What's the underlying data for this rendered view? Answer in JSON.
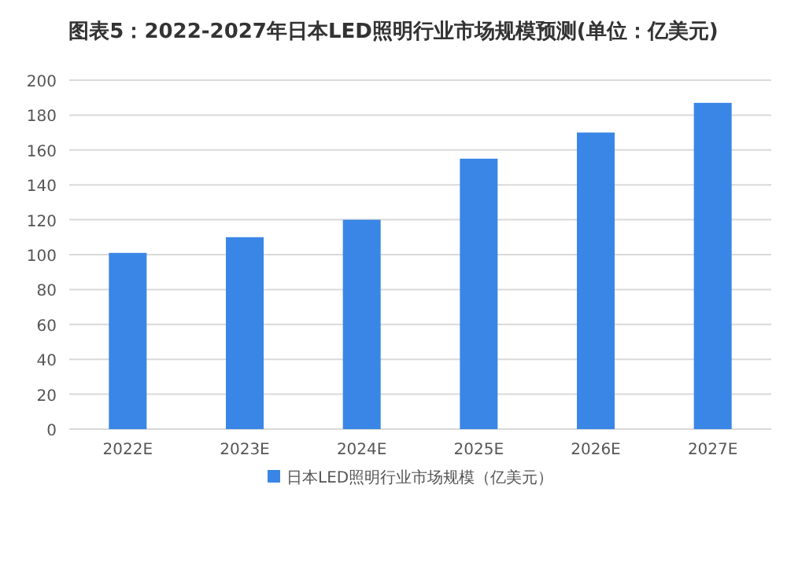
{
  "chart_data": {
    "type": "bar",
    "title": "图表5：2022-2027年日本LED照明行业市场规模预测(单位：亿美元)",
    "categories": [
      "2022E",
      "2023E",
      "2024E",
      "2025E",
      "2026E",
      "2027E"
    ],
    "series": [
      {
        "name": "日本LED照明行业市场规模（亿美元）",
        "color": "#3a86e6",
        "values": [
          101,
          110,
          120,
          155,
          170,
          187
        ]
      }
    ],
    "ylim": [
      0,
      200
    ],
    "yticks": [
      0,
      20,
      40,
      60,
      80,
      100,
      120,
      140,
      160,
      180,
      200
    ],
    "grid": "y",
    "legend": "bottom"
  }
}
